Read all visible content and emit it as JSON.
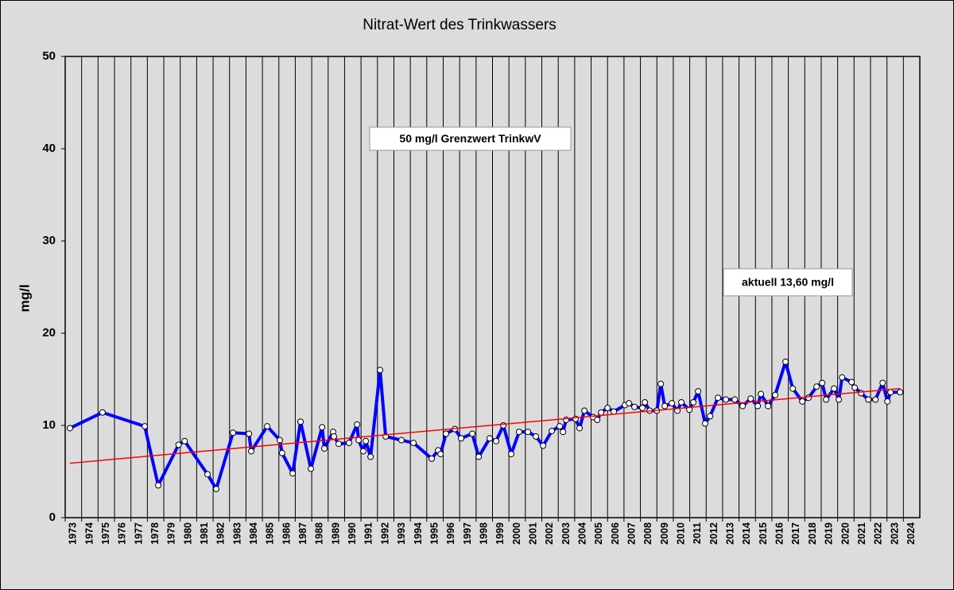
{
  "chart_data": {
    "type": "line",
    "title": "Nitrat-Wert des Trinkwassers",
    "ylabel": "mg/l",
    "annotations": [
      "50 mg/l  Grenzwert TrinkwV",
      "aktuell 13,60 mg/l"
    ],
    "xlim": [
      1973,
      2025
    ],
    "xticks": [
      1973,
      1974,
      1975,
      1976,
      1977,
      1978,
      1979,
      1980,
      1981,
      1982,
      1983,
      1984,
      1985,
      1986,
      1987,
      1988,
      1989,
      1990,
      1991,
      1992,
      1993,
      1994,
      1995,
      1996,
      1997,
      1998,
      1999,
      2000,
      2001,
      2002,
      2003,
      2004,
      2005,
      2006,
      2007,
      2008,
      2009,
      2010,
      2011,
      2012,
      2013,
      2014,
      2015,
      2016,
      2017,
      2018,
      2019,
      2020,
      2021,
      2022,
      2023,
      2024
    ],
    "ylim": [
      0,
      50
    ],
    "yticks": [
      0,
      10,
      20,
      30,
      40,
      50
    ],
    "grid": "x",
    "series": [
      {
        "color": "#0000ff",
        "x": [
          1973.29,
          1975.27,
          1977.84,
          1978.66,
          1979.9,
          1980.27,
          1981.66,
          1982.19,
          1983.21,
          1984.18,
          1984.32,
          1985.29,
          1986.06,
          1986.2,
          1986.84,
          1987.32,
          1987.95,
          1988.63,
          1988.77,
          1989.3,
          1989.35,
          1989.64,
          1990.27,
          1990.76,
          1990.85,
          1991.14,
          1991.29,
          1991.58,
          1992.16,
          1992.5,
          1993.46,
          1994.19,
          1995.3,
          1995.69,
          1995.84,
          1996.17,
          1996.71,
          1997.09,
          1997.77,
          1998.16,
          1998.83,
          1999.22,
          1999.66,
          2000.14,
          2000.62,
          2001.16,
          2001.64,
          2002.08,
          2002.61,
          2003.09,
          2003.29,
          2003.48,
          2004.06,
          2004.3,
          2004.59,
          2005.12,
          2005.37,
          2005.61,
          2006.0,
          2006.38,
          2007.06,
          2007.3,
          2007.64,
          2008.12,
          2008.27,
          2008.56,
          2009.0,
          2009.24,
          2009.48,
          2009.91,
          2010.25,
          2010.49,
          2010.98,
          2011.22,
          2011.51,
          2011.94,
          2012.24,
          2012.72,
          2013.2,
          2013.74,
          2014.22,
          2014.71,
          2015.14,
          2015.33,
          2015.77,
          2016.2,
          2016.83,
          2017.27,
          2017.85,
          2018.23,
          2018.72,
          2019.06,
          2019.3,
          2019.78,
          2020.07,
          2020.27,
          2020.85,
          2021.04,
          2021.43,
          2021.87,
          2022.3,
          2022.74,
          2023.03,
          2023.22,
          2023.8
        ],
        "values": [
          9.7,
          11.4,
          9.9,
          3.5,
          7.9,
          8.3,
          4.7,
          3.1,
          9.2,
          9.1,
          7.2,
          9.9,
          8.4,
          7.0,
          4.8,
          10.4,
          5.3,
          9.8,
          7.5,
          9.3,
          8.8,
          8.0,
          8.1,
          10.1,
          8.4,
          7.2,
          8.3,
          6.6,
          16.0,
          8.8,
          8.4,
          8.1,
          6.4,
          7.3,
          6.9,
          9.1,
          9.6,
          8.6,
          9.1,
          6.6,
          8.6,
          8.3,
          10.0,
          6.9,
          9.3,
          9.3,
          8.8,
          7.8,
          9.4,
          9.9,
          9.3,
          10.6,
          10.7,
          9.7,
          11.6,
          10.9,
          10.6,
          11.4,
          11.9,
          11.5,
          12.2,
          12.4,
          12.0,
          11.9,
          12.5,
          11.6,
          11.6,
          14.5,
          12.1,
          12.4,
          11.6,
          12.5,
          11.7,
          12.5,
          13.7,
          10.2,
          11.0,
          13.0,
          12.8,
          12.8,
          12.1,
          12.9,
          12.1,
          13.4,
          12.1,
          13.3,
          16.9,
          14.0,
          12.6,
          13.0,
          14.2,
          14.6,
          12.8,
          14.0,
          12.8,
          15.2,
          14.7,
          14.1,
          13.5,
          12.8,
          12.8,
          14.6,
          12.6,
          13.6,
          13.6
        ]
      }
    ],
    "trend_line": {
      "x": [
        1973.29,
        2023.8
      ],
      "values": [
        5.9,
        14.0
      ],
      "color": "#ff0000"
    }
  }
}
